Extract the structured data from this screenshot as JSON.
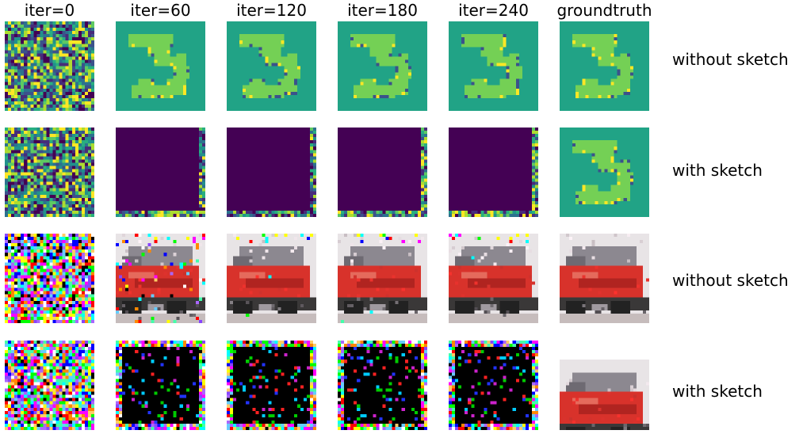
{
  "columns": [
    {
      "label": "iter=0"
    },
    {
      "label": "iter=60"
    },
    {
      "label": "iter=120"
    },
    {
      "label": "iter=180"
    },
    {
      "label": "iter=240"
    },
    {
      "label": "groundtruth"
    }
  ],
  "rows": [
    {
      "label": "without sketch",
      "dataset": "digit",
      "cells": [
        "noise",
        "recovered",
        "recovered",
        "recovered",
        "recovered",
        "truth"
      ]
    },
    {
      "label": "with sketch",
      "dataset": "digit",
      "cells": [
        "noise",
        "failed",
        "failed",
        "failed",
        "failed",
        "truth"
      ]
    },
    {
      "label": "without sketch",
      "dataset": "truck",
      "cells": [
        "noise",
        "recovering",
        "recovered-top-noise",
        "recovered-top-noise",
        "recovered-top-noise",
        "truth"
      ]
    },
    {
      "label": "with sketch",
      "dataset": "truck",
      "cells": [
        "noise",
        "failed",
        "failed",
        "failed",
        "failed",
        "truth"
      ]
    }
  ],
  "colors": {
    "viridis_bg": "#21a386",
    "viridis_digit": "#74d055",
    "viridis_dark": "#440154",
    "viridis_edge": "#3b528b",
    "viridis_yellow": "#fde725",
    "truck_red": "#d8322b"
  }
}
